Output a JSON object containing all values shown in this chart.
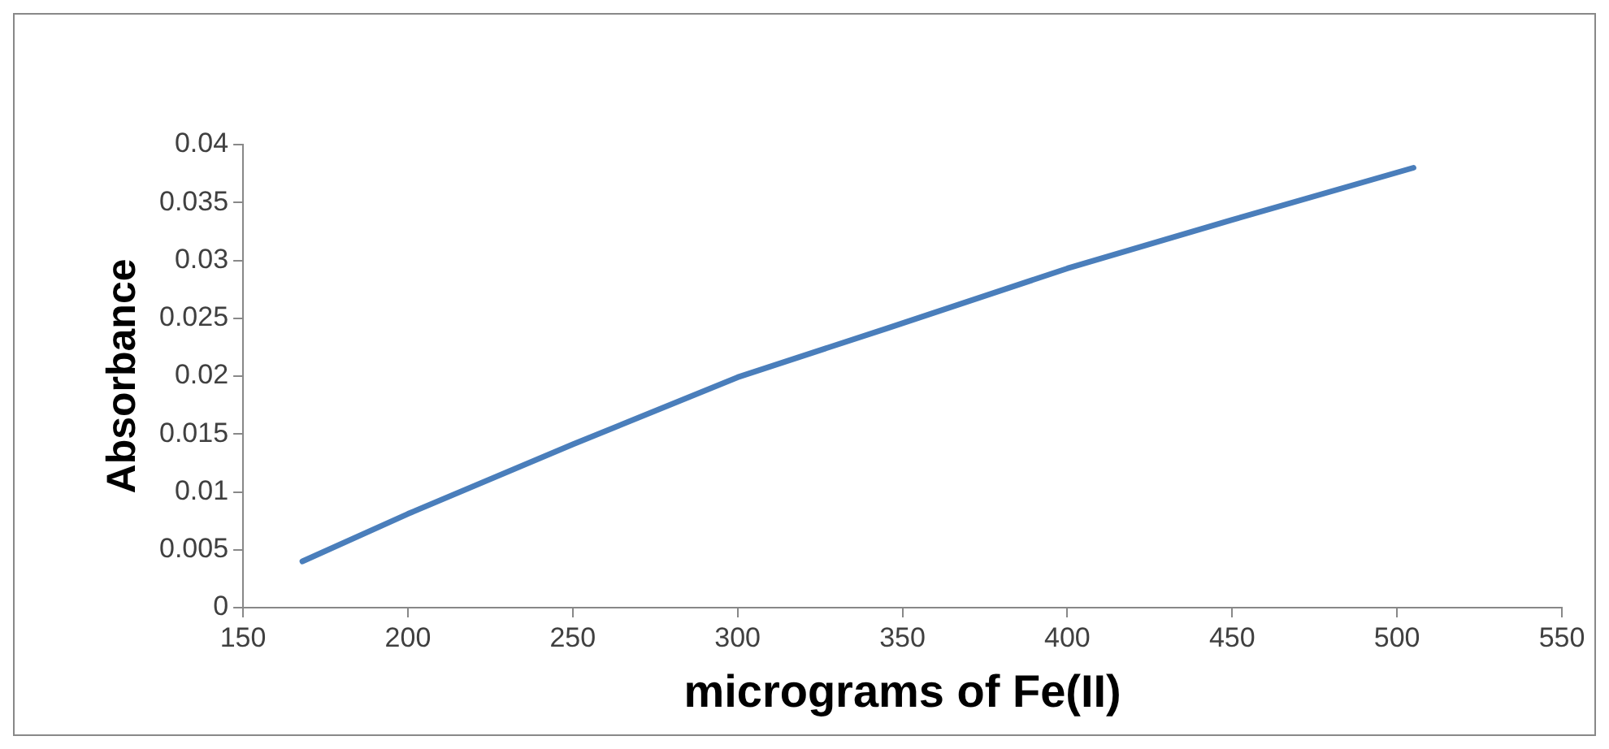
{
  "chart_data": {
    "type": "line",
    "xlabel": "micrograms of Fe(II)",
    "ylabel": "Absorbance",
    "series": [
      {
        "color": "#4a7ebb",
        "x": [
          168,
          200,
          250,
          300,
          345,
          400,
          450,
          505
        ],
        "values": [
          0.004,
          0.0081,
          0.0141,
          0.0199,
          0.0241,
          0.0293,
          0.0335,
          0.038
        ]
      }
    ],
    "xlim": [
      150,
      550
    ],
    "xticks": [
      150,
      200,
      250,
      300,
      350,
      400,
      450,
      500,
      550
    ],
    "ylim": [
      0,
      0.04
    ],
    "yticks": [
      0,
      0.005,
      0.01,
      0.015,
      0.02,
      0.025,
      0.03,
      0.035,
      0.04
    ],
    "grid": false,
    "legend": false,
    "marker": "none",
    "line_style": "solid"
  }
}
